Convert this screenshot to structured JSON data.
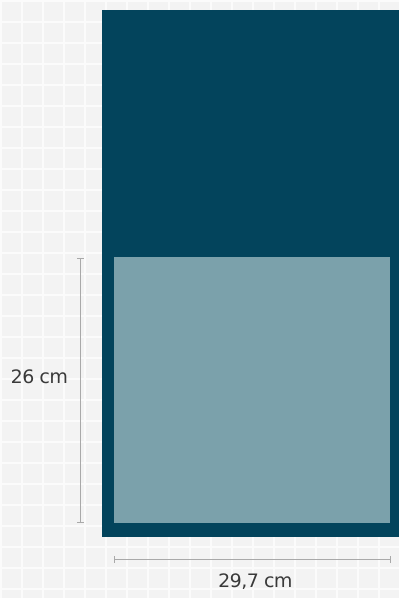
{
  "diagram": {
    "height_label": "26 cm",
    "width_label": "29,7 cm",
    "colors": {
      "background": "#f3f3f3",
      "outer_panel": "#03445c",
      "inner_panel": "#7ba1ab",
      "dimension_line": "#a9a9a9",
      "label_text": "#3a3a3a"
    }
  }
}
